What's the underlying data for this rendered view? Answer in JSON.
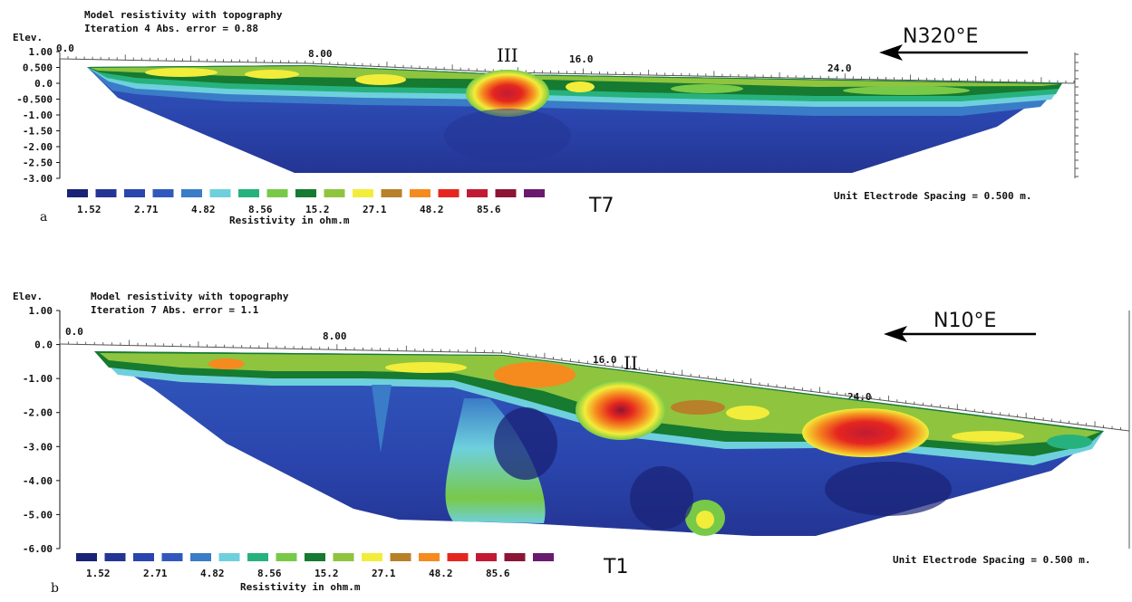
{
  "legend_colors": [
    "#1a2275",
    "#243594",
    "#2a45ad",
    "#3159bd",
    "#3a7cc7",
    "#6ed0dd",
    "#27b27d",
    "#78c948",
    "#167a30",
    "#8fc43f",
    "#f2ed3a",
    "#b88028",
    "#f58a1f",
    "#e5261f",
    "#c21a35",
    "#8c1535",
    "#6a1a6e"
  ],
  "chart_data": [
    {
      "type": "heatmap",
      "panel_label": "a",
      "title": "Model resistivity with topography",
      "subtitle": "Iteration 4 Abs. error = 0.88",
      "ylabel": "Elev.",
      "profile_name": "T7",
      "direction": "N320°E",
      "anomaly_label": "III",
      "spacing_text": "Unit Electrode Spacing = 0.500 m.",
      "legend_title": "Resistivity in ohm.m",
      "legend_ticks": [
        "1.52",
        "2.71",
        "4.82",
        "8.56",
        "15.2",
        "27.1",
        "48.2",
        "85.6"
      ],
      "y_ticks": [
        "1.00",
        "0.500",
        "0.0",
        "-0.500",
        "-1.00",
        "-1.50",
        "-2.00",
        "-2.50",
        "-3.00"
      ],
      "x_ticks": [
        "0.0",
        "8.00",
        "16.0",
        "24.0"
      ],
      "xlim": [
        0,
        31
      ],
      "ylim": [
        -3.0,
        1.0
      ],
      "anomalies": [
        {
          "label": "III",
          "x": 13.8,
          "elev": -0.35
        }
      ]
    },
    {
      "type": "heatmap",
      "panel_label": "b",
      "title": "Model resistivity with topography",
      "subtitle": "Iteration 7 Abs. error = 1.1",
      "ylabel": "Elev.",
      "profile_name": "T1",
      "direction": "N10°E",
      "anomaly_label": "II",
      "spacing_text": "Unit Electrode Spacing = 0.500 m.",
      "legend_title": "Resistivity in ohm.m",
      "legend_ticks": [
        "1.52",
        "2.71",
        "4.82",
        "8.56",
        "15.2",
        "27.1",
        "48.2",
        "85.6"
      ],
      "y_ticks": [
        "1.00",
        "0.0",
        "-1.00",
        "-2.00",
        "-3.00",
        "-4.00",
        "-5.00",
        "-6.00"
      ],
      "x_ticks": [
        "0.0",
        "8.00",
        "16.0",
        "24.0"
      ],
      "xlim": [
        0,
        31
      ],
      "ylim": [
        -6.0,
        1.0
      ],
      "anomalies": [
        {
          "label": "II",
          "x": 17.2,
          "elev": -2.0
        },
        {
          "label": "",
          "x": 24.8,
          "elev": -2.6
        }
      ]
    }
  ]
}
